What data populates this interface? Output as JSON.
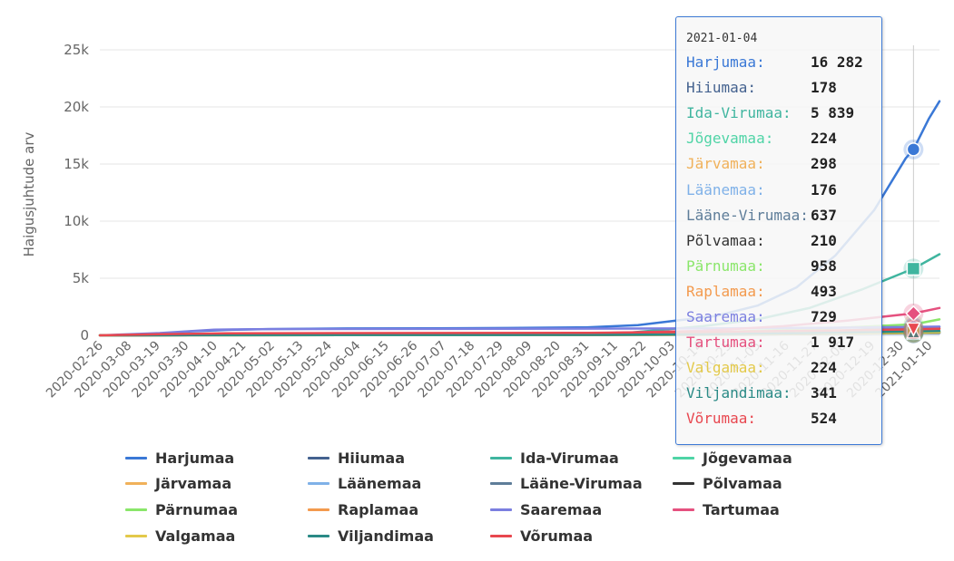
{
  "chart_data": {
    "type": "line",
    "title": "",
    "xlabel": "",
    "ylabel": "Haigusjuhtude arv",
    "ylim": [
      0,
      25000
    ],
    "y_ticks": [
      "0",
      "5k",
      "10k",
      "15k",
      "20k",
      "25k"
    ],
    "y_tick_values": [
      0,
      5000,
      10000,
      15000,
      20000,
      25000
    ],
    "x_ticks": [
      "2020-02-26",
      "2020-03-08",
      "2020-03-19",
      "2020-03-30",
      "2020-04-10",
      "2020-04-21",
      "2020-05-02",
      "2020-05-13",
      "2020-05-24",
      "2020-06-04",
      "2020-06-15",
      "2020-06-26",
      "2020-07-07",
      "2020-07-18",
      "2020-07-29",
      "2020-08-09",
      "2020-08-20",
      "2020-08-31",
      "2020-09-11",
      "2020-09-22",
      "2020-10-03",
      "2020-10-14",
      "2020-10-25",
      "2020-11-05",
      "2020-11-16",
      "2020-11-27",
      "2020-12-08",
      "2020-12-19",
      "2020-12-30",
      "2021-01-10"
    ],
    "x_range": [
      "2020-02-26",
      "2021-01-14"
    ],
    "grid": "horizontal",
    "legend_position": "bottom",
    "series": [
      {
        "name": "Harjumaa",
        "color": "#3a78d6",
        "points": [
          [
            "2020-02-26",
            0
          ],
          [
            "2020-03-10",
            10
          ],
          [
            "2020-03-20",
            150
          ],
          [
            "2020-04-01",
            350
          ],
          [
            "2020-04-15",
            480
          ],
          [
            "2020-05-01",
            550
          ],
          [
            "2020-06-01",
            600
          ],
          [
            "2020-07-01",
            620
          ],
          [
            "2020-08-01",
            640
          ],
          [
            "2020-08-31",
            700
          ],
          [
            "2020-09-20",
            900
          ],
          [
            "2020-10-05",
            1300
          ],
          [
            "2020-10-20",
            1700
          ],
          [
            "2020-11-05",
            2600
          ],
          [
            "2020-11-20",
            4200
          ],
          [
            "2020-12-05",
            7000
          ],
          [
            "2020-12-20",
            11000
          ],
          [
            "2021-01-01",
            15500
          ],
          [
            "2021-01-04",
            16282
          ],
          [
            "2021-01-10",
            19000
          ],
          [
            "2021-01-14",
            20500
          ]
        ]
      },
      {
        "name": "Hiiumaa",
        "color": "#44628f",
        "points": [
          [
            "2020-02-26",
            0
          ],
          [
            "2020-03-20",
            60
          ],
          [
            "2020-04-10",
            120
          ],
          [
            "2020-06-01",
            135
          ],
          [
            "2020-10-01",
            140
          ],
          [
            "2020-12-01",
            160
          ],
          [
            "2021-01-04",
            178
          ],
          [
            "2021-01-14",
            190
          ]
        ]
      },
      {
        "name": "Ida-Virumaa",
        "color": "#3fb59f",
        "points": [
          [
            "2020-02-26",
            0
          ],
          [
            "2020-03-25",
            20
          ],
          [
            "2020-05-01",
            40
          ],
          [
            "2020-08-01",
            60
          ],
          [
            "2020-09-15",
            200
          ],
          [
            "2020-10-15",
            800
          ],
          [
            "2020-11-05",
            1400
          ],
          [
            "2020-11-25",
            2400
          ],
          [
            "2020-12-15",
            4000
          ],
          [
            "2021-01-04",
            5839
          ],
          [
            "2021-01-14",
            7100
          ]
        ]
      },
      {
        "name": "Jõgevamaa",
        "color": "#4fd4a6",
        "points": [
          [
            "2020-02-26",
            0
          ],
          [
            "2020-04-01",
            10
          ],
          [
            "2020-08-01",
            20
          ],
          [
            "2020-10-15",
            50
          ],
          [
            "2020-12-01",
            120
          ],
          [
            "2021-01-04",
            224
          ],
          [
            "2021-01-14",
            260
          ]
        ]
      },
      {
        "name": "Järvamaa",
        "color": "#f0b15a",
        "points": [
          [
            "2020-02-26",
            0
          ],
          [
            "2020-04-01",
            20
          ],
          [
            "2020-08-01",
            30
          ],
          [
            "2020-10-15",
            70
          ],
          [
            "2020-12-01",
            180
          ],
          [
            "2021-01-04",
            298
          ],
          [
            "2021-01-14",
            340
          ]
        ]
      },
      {
        "name": "Läänemaa",
        "color": "#7fb1e8",
        "points": [
          [
            "2020-02-26",
            0
          ],
          [
            "2020-04-01",
            20
          ],
          [
            "2020-08-01",
            30
          ],
          [
            "2020-10-15",
            60
          ],
          [
            "2020-12-01",
            120
          ],
          [
            "2021-01-04",
            176
          ],
          [
            "2021-01-14",
            200
          ]
        ]
      },
      {
        "name": "Lääne-Virumaa",
        "color": "#5e7d99",
        "points": [
          [
            "2020-02-26",
            0
          ],
          [
            "2020-04-01",
            20
          ],
          [
            "2020-08-01",
            40
          ],
          [
            "2020-10-15",
            120
          ],
          [
            "2020-12-01",
            380
          ],
          [
            "2021-01-04",
            637
          ],
          [
            "2021-01-14",
            720
          ]
        ]
      },
      {
        "name": "Põlvamaa",
        "color": "#333333",
        "points": [
          [
            "2020-02-26",
            0
          ],
          [
            "2020-04-01",
            10
          ],
          [
            "2020-08-01",
            20
          ],
          [
            "2020-10-15",
            50
          ],
          [
            "2020-12-01",
            120
          ],
          [
            "2021-01-04",
            210
          ],
          [
            "2021-01-14",
            240
          ]
        ]
      },
      {
        "name": "Pärnumaa",
        "color": "#8ae66a",
        "points": [
          [
            "2020-02-26",
            0
          ],
          [
            "2020-04-01",
            80
          ],
          [
            "2020-06-01",
            110
          ],
          [
            "2020-09-01",
            140
          ],
          [
            "2020-10-15",
            250
          ],
          [
            "2020-12-01",
            600
          ],
          [
            "2021-01-04",
            958
          ],
          [
            "2021-01-14",
            1400
          ]
        ]
      },
      {
        "name": "Raplamaa",
        "color": "#f39a4e",
        "points": [
          [
            "2020-02-26",
            0
          ],
          [
            "2020-04-01",
            30
          ],
          [
            "2020-08-01",
            40
          ],
          [
            "2020-10-15",
            120
          ],
          [
            "2020-12-01",
            330
          ],
          [
            "2021-01-04",
            493
          ],
          [
            "2021-01-14",
            560
          ]
        ]
      },
      {
        "name": "Saaremaa",
        "color": "#7b7fe0",
        "points": [
          [
            "2020-02-26",
            0
          ],
          [
            "2020-03-20",
            200
          ],
          [
            "2020-04-10",
            500
          ],
          [
            "2020-05-01",
            550
          ],
          [
            "2020-08-01",
            570
          ],
          [
            "2020-10-15",
            600
          ],
          [
            "2020-12-01",
            660
          ],
          [
            "2021-01-04",
            729
          ],
          [
            "2021-01-14",
            760
          ]
        ]
      },
      {
        "name": "Tartumaa",
        "color": "#e5517f",
        "points": [
          [
            "2020-02-26",
            0
          ],
          [
            "2020-04-01",
            80
          ],
          [
            "2020-06-01",
            120
          ],
          [
            "2020-09-01",
            180
          ],
          [
            "2020-10-15",
            400
          ],
          [
            "2020-11-15",
            800
          ],
          [
            "2020-12-10",
            1300
          ],
          [
            "2021-01-04",
            1917
          ],
          [
            "2021-01-14",
            2400
          ]
        ]
      },
      {
        "name": "Valgamaa",
        "color": "#e3c94a",
        "points": [
          [
            "2020-02-26",
            0
          ],
          [
            "2020-04-01",
            10
          ],
          [
            "2020-08-01",
            20
          ],
          [
            "2020-10-15",
            60
          ],
          [
            "2020-12-01",
            140
          ],
          [
            "2021-01-04",
            224
          ],
          [
            "2021-01-14",
            250
          ]
        ]
      },
      {
        "name": "Viljandimaa",
        "color": "#2a8a86",
        "points": [
          [
            "2020-02-26",
            0
          ],
          [
            "2020-04-01",
            20
          ],
          [
            "2020-08-01",
            30
          ],
          [
            "2020-10-15",
            90
          ],
          [
            "2020-12-01",
            220
          ],
          [
            "2021-01-04",
            341
          ],
          [
            "2021-01-14",
            380
          ]
        ]
      },
      {
        "name": "Võrumaa",
        "color": "#e8474f",
        "points": [
          [
            "2020-02-26",
            0
          ],
          [
            "2020-03-20",
            100
          ],
          [
            "2020-04-15",
            180
          ],
          [
            "2020-06-01",
            200
          ],
          [
            "2020-09-01",
            220
          ],
          [
            "2020-10-15",
            300
          ],
          [
            "2020-12-01",
            420
          ],
          [
            "2021-01-04",
            524
          ],
          [
            "2021-01-14",
            580
          ]
        ]
      }
    ],
    "hover": {
      "date": "2021-01-04",
      "rows": [
        {
          "name": "Harjumaa",
          "value": "16 282",
          "color": "#3a78d6"
        },
        {
          "name": "Hiiumaa",
          "value": "178",
          "color": "#44628f"
        },
        {
          "name": "Ida-Virumaa",
          "value": "5 839",
          "color": "#3fb59f"
        },
        {
          "name": "Jõgevamaa",
          "value": "224",
          "color": "#4fd4a6"
        },
        {
          "name": "Järvamaa",
          "value": "298",
          "color": "#f0b15a"
        },
        {
          "name": "Läänemaa",
          "value": "176",
          "color": "#7fb1e8"
        },
        {
          "name": "Lääne-Virumaa",
          "value": "637",
          "color": "#5e7d99"
        },
        {
          "name": "Põlvamaa",
          "value": "210",
          "color": "#333333"
        },
        {
          "name": "Pärnumaa",
          "value": "958",
          "color": "#8ae66a"
        },
        {
          "name": "Raplamaa",
          "value": "493",
          "color": "#f39a4e"
        },
        {
          "name": "Saaremaa",
          "value": "729",
          "color": "#7b7fe0"
        },
        {
          "name": "Tartumaa",
          "value": "1 917",
          "color": "#e5517f"
        },
        {
          "name": "Valgamaa",
          "value": "224",
          "color": "#e3c94a"
        },
        {
          "name": "Viljandimaa",
          "value": "341",
          "color": "#2a8a86"
        },
        {
          "name": "Võrumaa",
          "value": "524",
          "color": "#e8474f"
        }
      ]
    }
  }
}
